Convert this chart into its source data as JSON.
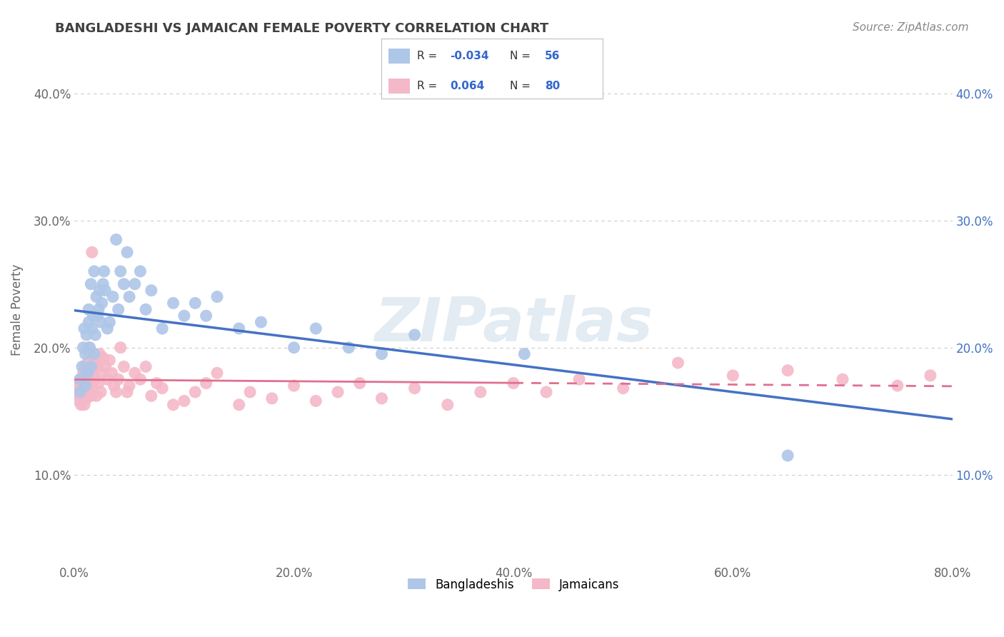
{
  "title": "BANGLADESHI VS JAMAICAN FEMALE POVERTY CORRELATION CHART",
  "source_text": "Source: ZipAtlas.com",
  "ylabel": "Female Poverty",
  "xlim": [
    0.0,
    0.8
  ],
  "ylim": [
    0.03,
    0.43
  ],
  "xtick_labels": [
    "0.0%",
    "20.0%",
    "40.0%",
    "60.0%",
    "80.0%"
  ],
  "xtick_vals": [
    0.0,
    0.2,
    0.4,
    0.6,
    0.8
  ],
  "ytick_labels": [
    "10.0%",
    "20.0%",
    "30.0%",
    "40.0%"
  ],
  "ytick_vals": [
    0.1,
    0.2,
    0.3,
    0.4
  ],
  "bangladeshi_color": "#aec6e8",
  "jamaican_color": "#f4b8c8",
  "bangladeshi_line_color": "#4472c4",
  "jamaican_line_color": "#e07090",
  "bg_color": "#ffffff",
  "grid_color": "#cccccc",
  "title_color": "#404040",
  "R_bangladeshi": -0.034,
  "N_bangladeshi": 56,
  "R_jamaican": 0.064,
  "N_jamaican": 80,
  "bangladeshi_x": [
    0.005,
    0.005,
    0.007,
    0.008,
    0.009,
    0.01,
    0.01,
    0.011,
    0.012,
    0.013,
    0.013,
    0.014,
    0.015,
    0.015,
    0.016,
    0.017,
    0.018,
    0.018,
    0.019,
    0.02,
    0.021,
    0.022,
    0.023,
    0.024,
    0.025,
    0.026,
    0.027,
    0.028,
    0.03,
    0.032,
    0.035,
    0.038,
    0.04,
    0.042,
    0.045,
    0.048,
    0.05,
    0.055,
    0.06,
    0.065,
    0.07,
    0.08,
    0.09,
    0.1,
    0.11,
    0.12,
    0.13,
    0.15,
    0.17,
    0.2,
    0.22,
    0.25,
    0.28,
    0.31,
    0.41,
    0.65
  ],
  "bangladeshi_y": [
    0.165,
    0.175,
    0.185,
    0.2,
    0.215,
    0.17,
    0.195,
    0.21,
    0.18,
    0.22,
    0.23,
    0.2,
    0.185,
    0.25,
    0.215,
    0.225,
    0.195,
    0.26,
    0.21,
    0.24,
    0.225,
    0.23,
    0.245,
    0.22,
    0.235,
    0.25,
    0.26,
    0.245,
    0.215,
    0.22,
    0.24,
    0.285,
    0.23,
    0.26,
    0.25,
    0.275,
    0.24,
    0.25,
    0.26,
    0.23,
    0.245,
    0.215,
    0.235,
    0.225,
    0.235,
    0.225,
    0.24,
    0.215,
    0.22,
    0.2,
    0.215,
    0.2,
    0.195,
    0.21,
    0.195,
    0.115
  ],
  "jamaican_x": [
    0.003,
    0.004,
    0.005,
    0.005,
    0.006,
    0.006,
    0.007,
    0.007,
    0.008,
    0.008,
    0.009,
    0.009,
    0.01,
    0.01,
    0.011,
    0.011,
    0.012,
    0.012,
    0.013,
    0.013,
    0.014,
    0.014,
    0.015,
    0.015,
    0.016,
    0.016,
    0.017,
    0.018,
    0.019,
    0.02,
    0.02,
    0.021,
    0.022,
    0.023,
    0.024,
    0.025,
    0.026,
    0.028,
    0.03,
    0.032,
    0.034,
    0.036,
    0.038,
    0.04,
    0.042,
    0.045,
    0.048,
    0.05,
    0.055,
    0.06,
    0.065,
    0.07,
    0.075,
    0.08,
    0.09,
    0.1,
    0.11,
    0.12,
    0.13,
    0.15,
    0.16,
    0.18,
    0.2,
    0.22,
    0.24,
    0.26,
    0.28,
    0.31,
    0.34,
    0.37,
    0.4,
    0.43,
    0.46,
    0.5,
    0.55,
    0.6,
    0.65,
    0.7,
    0.75,
    0.78
  ],
  "jamaican_y": [
    0.168,
    0.158,
    0.172,
    0.162,
    0.175,
    0.155,
    0.17,
    0.16,
    0.165,
    0.18,
    0.155,
    0.175,
    0.165,
    0.185,
    0.16,
    0.178,
    0.17,
    0.188,
    0.165,
    0.2,
    0.172,
    0.195,
    0.162,
    0.182,
    0.275,
    0.168,
    0.178,
    0.19,
    0.175,
    0.185,
    0.162,
    0.188,
    0.172,
    0.195,
    0.165,
    0.18,
    0.192,
    0.185,
    0.175,
    0.19,
    0.18,
    0.17,
    0.165,
    0.175,
    0.2,
    0.185,
    0.165,
    0.17,
    0.18,
    0.175,
    0.185,
    0.162,
    0.172,
    0.168,
    0.155,
    0.158,
    0.165,
    0.172,
    0.18,
    0.155,
    0.165,
    0.16,
    0.17,
    0.158,
    0.165,
    0.172,
    0.16,
    0.168,
    0.155,
    0.165,
    0.172,
    0.165,
    0.175,
    0.168,
    0.188,
    0.178,
    0.182,
    0.175,
    0.17,
    0.178
  ]
}
